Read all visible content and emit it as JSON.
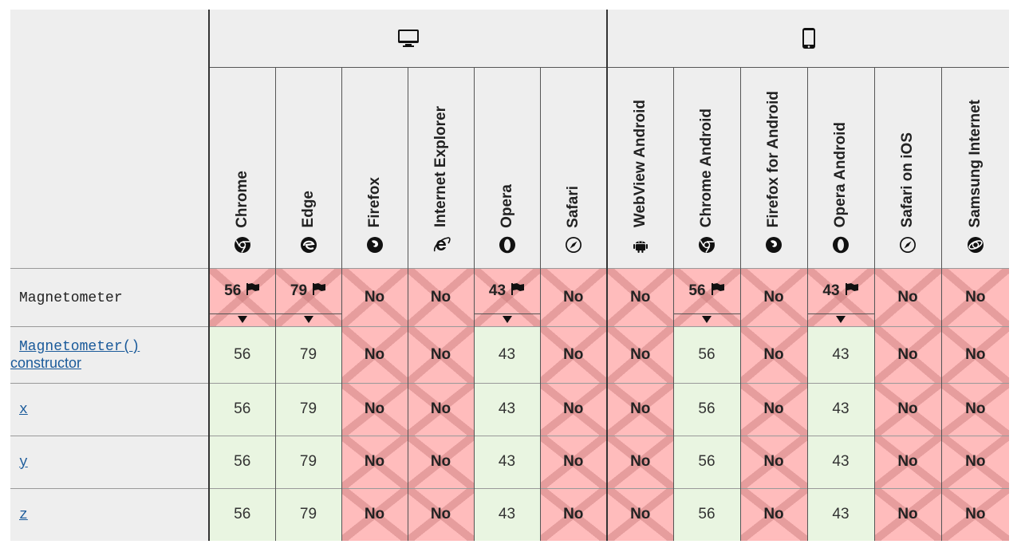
{
  "platforms": [
    {
      "name": "desktop-icon"
    },
    {
      "name": "mobile-icon"
    }
  ],
  "browsers": [
    {
      "label": "Chrome",
      "icon": "chrome-icon"
    },
    {
      "label": "Edge",
      "icon": "edge-icon"
    },
    {
      "label": "Firefox",
      "icon": "firefox-icon"
    },
    {
      "label": "Internet Explorer",
      "icon": "ie-icon"
    },
    {
      "label": "Opera",
      "icon": "opera-icon"
    },
    {
      "label": "Safari",
      "icon": "safari-icon"
    },
    {
      "label": "WebView Android",
      "icon": "android-icon"
    },
    {
      "label": "Chrome Android",
      "icon": "chrome-icon"
    },
    {
      "label": "Firefox for Android",
      "icon": "firefox-icon"
    },
    {
      "label": "Opera Android",
      "icon": "opera-icon"
    },
    {
      "label": "Safari on iOS",
      "icon": "safari-icon"
    },
    {
      "label": "Samsung Internet",
      "icon": "samsung-icon"
    }
  ],
  "rows": [
    {
      "feature": "Magnetometer",
      "link": false,
      "cells": [
        "56",
        "79",
        "No",
        "No",
        "43",
        "No",
        "No",
        "56",
        "No",
        "43",
        "No",
        "No"
      ]
    },
    {
      "feature": "Magnetometer()",
      "feature_suffix": "constructor",
      "link": true,
      "cells": [
        "56",
        "79",
        "No",
        "No",
        "43",
        "No",
        "No",
        "56",
        "No",
        "43",
        "No",
        "No"
      ]
    },
    {
      "feature": "x",
      "link": true,
      "cells": [
        "56",
        "79",
        "No",
        "No",
        "43",
        "No",
        "No",
        "56",
        "No",
        "43",
        "No",
        "No"
      ]
    },
    {
      "feature": "y",
      "link": true,
      "cells": [
        "56",
        "79",
        "No",
        "No",
        "43",
        "No",
        "No",
        "56",
        "No",
        "43",
        "No",
        "No"
      ]
    },
    {
      "feature": "z",
      "link": true,
      "cells": [
        "56",
        "79",
        "No",
        "No",
        "43",
        "No",
        "No",
        "56",
        "No",
        "43",
        "No",
        "No"
      ]
    }
  ]
}
